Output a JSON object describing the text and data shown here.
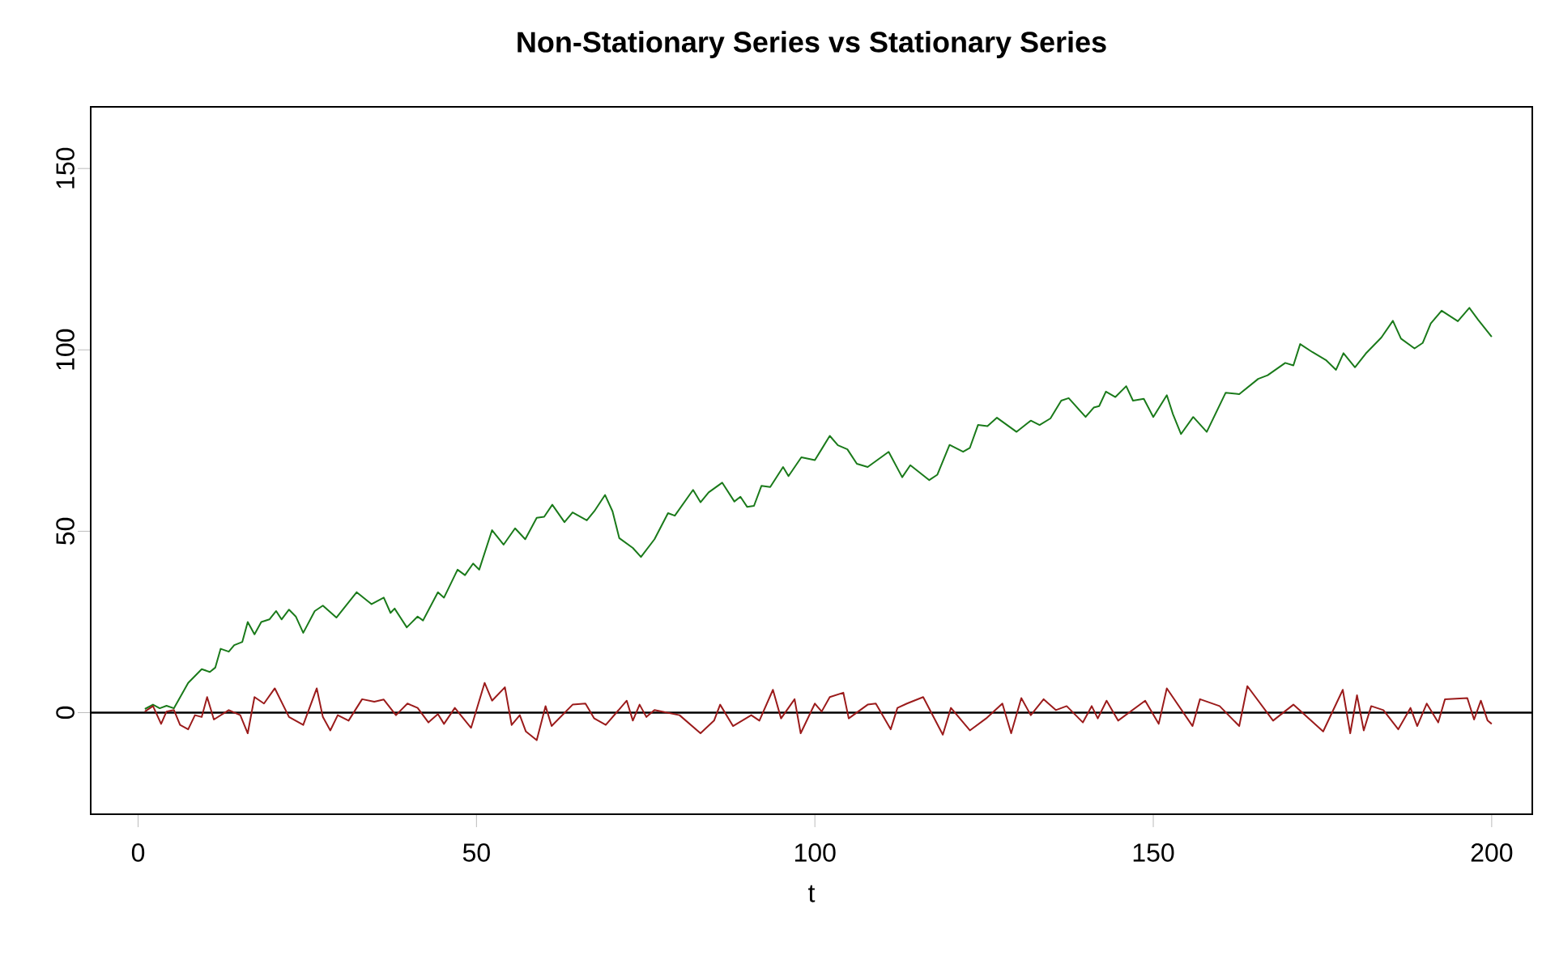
{
  "chart_data": {
    "type": "line",
    "title": "Non-Stationary Series vs Stationary Series",
    "xlabel": "t",
    "xlim": [
      -7,
      206
    ],
    "ylim": [
      -28,
      167
    ],
    "xticks": [
      0,
      50,
      100,
      150,
      200
    ],
    "yticks": [
      0,
      50,
      100,
      150
    ],
    "ref_lines": [
      {
        "axis": "y",
        "value": 0,
        "color": "#000000"
      }
    ],
    "series": [
      {
        "color": "#1a7a1a",
        "x": [
          1,
          2.2,
          3.2,
          4.2,
          5.3,
          7.4,
          9.4,
          10.6,
          11.4,
          12.2,
          13.4,
          14.2,
          15.4,
          16.2,
          17.2,
          18.2,
          19.4,
          20.4,
          21.2,
          22.3,
          23.3,
          24.4,
          26.1,
          27.3,
          29.3,
          32.3,
          34.5,
          36.3,
          37.3,
          37.9,
          39.7,
          41.3,
          42.1,
          44.3,
          45.2,
          47.2,
          48.3,
          49.5,
          50.4,
          52.3,
          54,
          55.7,
          57.2,
          58.9,
          60,
          61.2,
          63,
          64.2,
          66.3,
          67.4,
          69,
          70.1,
          71.1,
          73.1,
          74.3,
          76.3,
          78.3,
          79.3,
          82,
          83.1,
          84.3,
          86.3,
          88.1,
          89,
          90,
          91,
          92.1,
          93.4,
          95.3,
          96.1,
          98,
          100,
          102.2,
          103.4,
          104.8,
          106.2,
          107.8,
          110.9,
          112.9,
          114.1,
          116.9,
          118.1,
          119.9,
          121.9,
          122.9,
          124.1,
          125.5,
          126.9,
          129.8,
          131.9,
          133.2,
          134.8,
          136.4,
          137.5,
          140,
          141.2,
          142,
          143,
          144.4,
          146,
          147,
          148.6,
          150,
          152,
          152.9,
          154.1,
          155.9,
          157.9,
          160.7,
          162.7,
          165.5,
          166.9,
          169.5,
          170.7,
          171.7,
          173.5,
          175.5,
          177,
          178.1,
          179.8,
          181.4,
          183.7,
          185.4,
          186.6,
          188.6,
          189.8,
          191,
          192.6,
          195,
          196.7,
          198,
          200
        ],
        "values": [
          1,
          2.2,
          1.2,
          1.9,
          1.2,
          8.2,
          12,
          11.2,
          12.4,
          17.6,
          16.8,
          18.6,
          19.5,
          25,
          21.6,
          25,
          25.7,
          28,
          25.7,
          28.4,
          26.5,
          22,
          28,
          29.5,
          26.2,
          33.2,
          29.9,
          31.7,
          27.5,
          28.7,
          23.5,
          26.5,
          25.4,
          33.2,
          31.7,
          39.4,
          37.9,
          41.1,
          39.4,
          50.3,
          46.3,
          50.8,
          47.8,
          53.7,
          54,
          57.3,
          52.5,
          55.2,
          53,
          55.5,
          60,
          55.5,
          48.1,
          45.4,
          42.9,
          47.8,
          55,
          54.3,
          61.4,
          58,
          60.7,
          63.4,
          58.2,
          59.5,
          56.7,
          57,
          62.5,
          62.2,
          67.7,
          65.2,
          70.4,
          69.6,
          76.3,
          73.7,
          72.6,
          68.6,
          67.7,
          71.9,
          64.9,
          68.2,
          64.1,
          65.6,
          73.8,
          71.9,
          73,
          79.3,
          79,
          81.3,
          77.4,
          80.5,
          79.3,
          81.1,
          86,
          86.7,
          81.5,
          84.1,
          84.5,
          88.5,
          87,
          90,
          86,
          86.5,
          81.5,
          87.5,
          82.3,
          76.8,
          81.5,
          77.4,
          88.2,
          87.8,
          92,
          93,
          96.4,
          95.7,
          101.6,
          99.4,
          97.2,
          94.5,
          99.1,
          95.2,
          99,
          103.4,
          108,
          103.1,
          100.4,
          101.9,
          107.3,
          110.8,
          107.9,
          111.6,
          108.3,
          103.6
        ]
      },
      {
        "color": "#9b1b1b",
        "x": [
          1,
          2.2,
          3.4,
          4.2,
          5.3,
          6.2,
          7.4,
          8.4,
          9.4,
          10.2,
          11.2,
          13.4,
          15.1,
          16.2,
          17.2,
          18.6,
          20.2,
          22.3,
          24.4,
          26.4,
          27.3,
          28.4,
          29.5,
          31.1,
          33.1,
          34.9,
          36.3,
          38.1,
          39.8,
          41.3,
          42.9,
          44.3,
          45.2,
          46.8,
          49.2,
          51.2,
          52.3,
          54.2,
          55.2,
          56.4,
          57.3,
          58.9,
          60.2,
          61.1,
          64.2,
          66.1,
          67.4,
          69.1,
          72.2,
          73.1,
          74.1,
          75.1,
          76.3,
          80,
          83.1,
          85.1,
          86,
          87.9,
          90.6,
          91.8,
          93.8,
          95,
          97,
          97.9,
          100,
          101,
          102.2,
          104.2,
          105,
          107.8,
          109,
          111.2,
          112.2,
          113.6,
          116,
          118.9,
          120.1,
          122.9,
          125.3,
          127.7,
          129,
          130.5,
          131.9,
          133.8,
          135.6,
          137.2,
          139.6,
          140.9,
          141.8,
          143.1,
          144.8,
          148.8,
          150.8,
          152,
          155.8,
          156.9,
          159.8,
          162.7,
          163.9,
          167.7,
          170.7,
          175.1,
          178,
          179.1,
          180.1,
          181.1,
          182.2,
          184,
          186.2,
          188,
          189,
          190.4,
          192.1,
          193.1,
          196.4,
          197.4,
          198.4,
          199.4,
          200
        ],
        "values": [
          0.3,
          1.8,
          -3.1,
          0.3,
          0.7,
          -3.4,
          -4.6,
          -0.7,
          -1.2,
          4.3,
          -1.9,
          0.7,
          -0.7,
          -5.7,
          4.3,
          2.5,
          6.7,
          -1.2,
          -3.4,
          6.7,
          -1.2,
          -4.9,
          -0.7,
          -2.2,
          3.7,
          3,
          3.6,
          -0.7,
          2.5,
          1.3,
          -2.7,
          -0.4,
          -3.1,
          1.3,
          -4.2,
          8.2,
          3.3,
          7,
          -3.4,
          -0.7,
          -5.2,
          -7.6,
          1.8,
          -3.7,
          2.2,
          2.5,
          -1.6,
          -3.4,
          3.3,
          -2.2,
          2.2,
          -1.2,
          0.7,
          -0.7,
          -5.7,
          -2.2,
          2.2,
          -3.7,
          -0.7,
          -2.2,
          6.3,
          -1.6,
          3.7,
          -5.7,
          2.5,
          0.3,
          4.3,
          5.5,
          -1.6,
          2.2,
          2.5,
          -4.6,
          1.3,
          2.5,
          4.3,
          -6.1,
          1.3,
          -4.9,
          -1.6,
          2.5,
          -5.7,
          4,
          -0.7,
          3.7,
          0.7,
          1.8,
          -2.7,
          1.8,
          -1.6,
          3.3,
          -2.2,
          3.3,
          -3.1,
          6.7,
          -3.7,
          3.7,
          1.8,
          -3.7,
          7.3,
          -2.2,
          2.2,
          -5.2,
          6.3,
          -5.7,
          4.8,
          -4.9,
          1.8,
          0.7,
          -4.6,
          1.3,
          -3.7,
          2.5,
          -2.7,
          3.7,
          4,
          -1.9,
          3.3,
          -2.2,
          -3.1
        ]
      }
    ]
  }
}
